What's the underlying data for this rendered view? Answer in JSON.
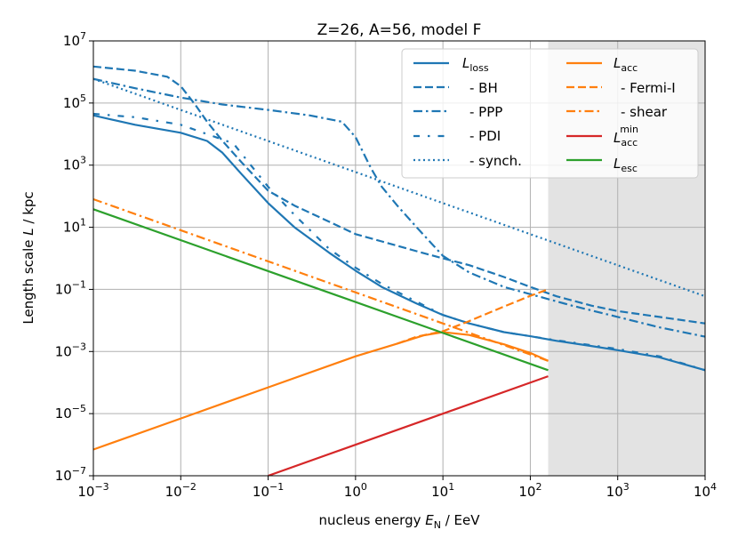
{
  "chart_data": {
    "type": "line",
    "title": "Z=26, A=56, model F",
    "xscale": "log",
    "yscale": "log",
    "xlim": [
      0.001,
      10000
    ],
    "ylim": [
      1e-07,
      10000000.0
    ],
    "xlabel": {
      "pre": "nucleus energy ",
      "var": "E",
      "sub": "N",
      "post": " / EeV"
    },
    "ylabel": {
      "pre": "Length scale ",
      "var": "L",
      "post": " / kpc"
    },
    "x_ticks": [
      {
        "value": 0.001,
        "base": "10",
        "exp": "−3"
      },
      {
        "value": 0.01,
        "base": "10",
        "exp": "−2"
      },
      {
        "value": 0.1,
        "base": "10",
        "exp": "−1"
      },
      {
        "value": 1,
        "base": "10",
        "exp": "0"
      },
      {
        "value": 10,
        "base": "10",
        "exp": "1"
      },
      {
        "value": 100,
        "base": "10",
        "exp": "2"
      },
      {
        "value": 1000,
        "base": "10",
        "exp": "3"
      },
      {
        "value": 10000,
        "base": "10",
        "exp": "4"
      }
    ],
    "y_ticks": [
      {
        "value": 1e-07,
        "base": "10",
        "exp": "−7"
      },
      {
        "value": 1e-05,
        "base": "10",
        "exp": "−5"
      },
      {
        "value": 0.001,
        "base": "10",
        "exp": "−3"
      },
      {
        "value": 0.1,
        "base": "10",
        "exp": "−1"
      },
      {
        "value": 10,
        "base": "10",
        "exp": "1"
      },
      {
        "value": 1000,
        "base": "10",
        "exp": "3"
      },
      {
        "value": 100000,
        "base": "10",
        "exp": "5"
      },
      {
        "value": 10000000,
        "base": "10",
        "exp": "7"
      }
    ],
    "grid": true,
    "shaded_region": {
      "x_from": 160,
      "x_to": 10000,
      "color": "#e3e3e3"
    },
    "legend_position": "top-right",
    "series": [
      {
        "id": "loss",
        "label_main": "L",
        "label_sub": "loss",
        "color": "#1f77b4",
        "style": "solid",
        "x": [
          0.001,
          0.003,
          0.01,
          0.02,
          0.03,
          0.05,
          0.1,
          0.2,
          0.5,
          1,
          2,
          5,
          10,
          20,
          50,
          100,
          200,
          500,
          1000,
          3000,
          10000
        ],
        "y": [
          40000,
          20000,
          11000,
          6000,
          2500,
          500,
          60,
          10,
          1.5,
          0.4,
          0.12,
          0.035,
          0.015,
          0.008,
          0.0042,
          0.0031,
          0.0022,
          0.0015,
          0.0011,
          0.00065,
          0.00025
        ]
      },
      {
        "id": "bh",
        "label_main": "",
        "label_sub": "",
        "label_text": "- BH",
        "color": "#1f77b4",
        "style": "dashed",
        "x": [
          0.001,
          0.003,
          0.007,
          0.01,
          0.015,
          0.02,
          0.03,
          0.05,
          0.1,
          0.2,
          0.5,
          1,
          2,
          5,
          10,
          20,
          50,
          100,
          200,
          500,
          1000,
          3000,
          10000
        ],
        "y": [
          1500000,
          1100000,
          700000,
          350000,
          80000,
          25000,
          6000,
          1200,
          150,
          50,
          15,
          6,
          3.5,
          1.7,
          1,
          0.6,
          0.25,
          0.12,
          0.06,
          0.03,
          0.02,
          0.013,
          0.008
        ]
      },
      {
        "id": "ppp",
        "label_main": "",
        "label_sub": "",
        "label_text": "- PPP",
        "color": "#1f77b4",
        "style": "dashdot",
        "x": [
          0.001,
          0.003,
          0.01,
          0.03,
          0.1,
          0.3,
          0.7,
          1,
          1.5,
          2,
          3,
          5,
          10,
          20,
          50,
          100,
          300,
          1000,
          3000,
          10000
        ],
        "y": [
          600000,
          300000,
          150000,
          90000,
          60000,
          40000,
          25000,
          8000,
          800,
          200,
          50,
          10,
          1.2,
          0.35,
          0.12,
          0.07,
          0.03,
          0.013,
          0.006,
          0.003
        ]
      },
      {
        "id": "pdi",
        "label_main": "",
        "label_sub": "",
        "label_text": "- PDI",
        "color": "#1f77b4",
        "style": "loosedashdot",
        "x": [
          0.001,
          0.003,
          0.01,
          0.02,
          0.04,
          0.06,
          0.1,
          0.2,
          0.5,
          1,
          2,
          5,
          10,
          20,
          50,
          100,
          200,
          500,
          1000,
          3000,
          10000
        ],
        "y": [
          45000,
          35000,
          20000,
          10000,
          5000,
          1200,
          200,
          25,
          2,
          0.5,
          0.15,
          0.04,
          0.015,
          0.008,
          0.0042,
          0.0031,
          0.0023,
          0.0016,
          0.0012,
          0.0007,
          0.00025
        ]
      },
      {
        "id": "synch",
        "label_main": "",
        "label_sub": "",
        "label_text": "- synch.",
        "color": "#1f77b4",
        "style": "dotted",
        "x": [
          0.001,
          10000
        ],
        "y": [
          600000,
          0.06
        ]
      },
      {
        "id": "acc",
        "label_main": "L",
        "label_sub": "acc",
        "color": "#ff7f0e",
        "style": "solid",
        "x": [
          0.001,
          0.01,
          0.1,
          1,
          3,
          6,
          10,
          20,
          50,
          100,
          160
        ],
        "y": [
          7e-07,
          7e-06,
          7e-05,
          0.0007,
          0.0018,
          0.0033,
          0.0042,
          0.0034,
          0.0017,
          0.0009,
          0.0005
        ]
      },
      {
        "id": "fermi",
        "label_main": "",
        "label_sub": "",
        "label_text": "- Fermi-I",
        "color": "#ff7f0e",
        "style": "dashed",
        "x": [
          3,
          5,
          10,
          20,
          50,
          100,
          160
        ],
        "y": [
          0.0018,
          0.003,
          0.0045,
          0.0095,
          0.028,
          0.062,
          0.1
        ]
      },
      {
        "id": "shear",
        "label_main": "",
        "label_sub": "",
        "label_text": "- shear",
        "color": "#ff7f0e",
        "style": "dashdot",
        "x": [
          0.001,
          160
        ],
        "y": [
          80,
          0.0005
        ]
      },
      {
        "id": "accmin",
        "label_main": "L",
        "label_sub": "acc",
        "label_sup": "min",
        "color": "#d62728",
        "style": "solid",
        "x": [
          0.1,
          160
        ],
        "y": [
          1e-07,
          0.00016
        ]
      },
      {
        "id": "esc",
        "label_main": "L",
        "label_sub": "esc",
        "color": "#2ca02c",
        "style": "solid",
        "x": [
          0.001,
          160
        ],
        "y": [
          38,
          0.00025
        ]
      }
    ]
  }
}
